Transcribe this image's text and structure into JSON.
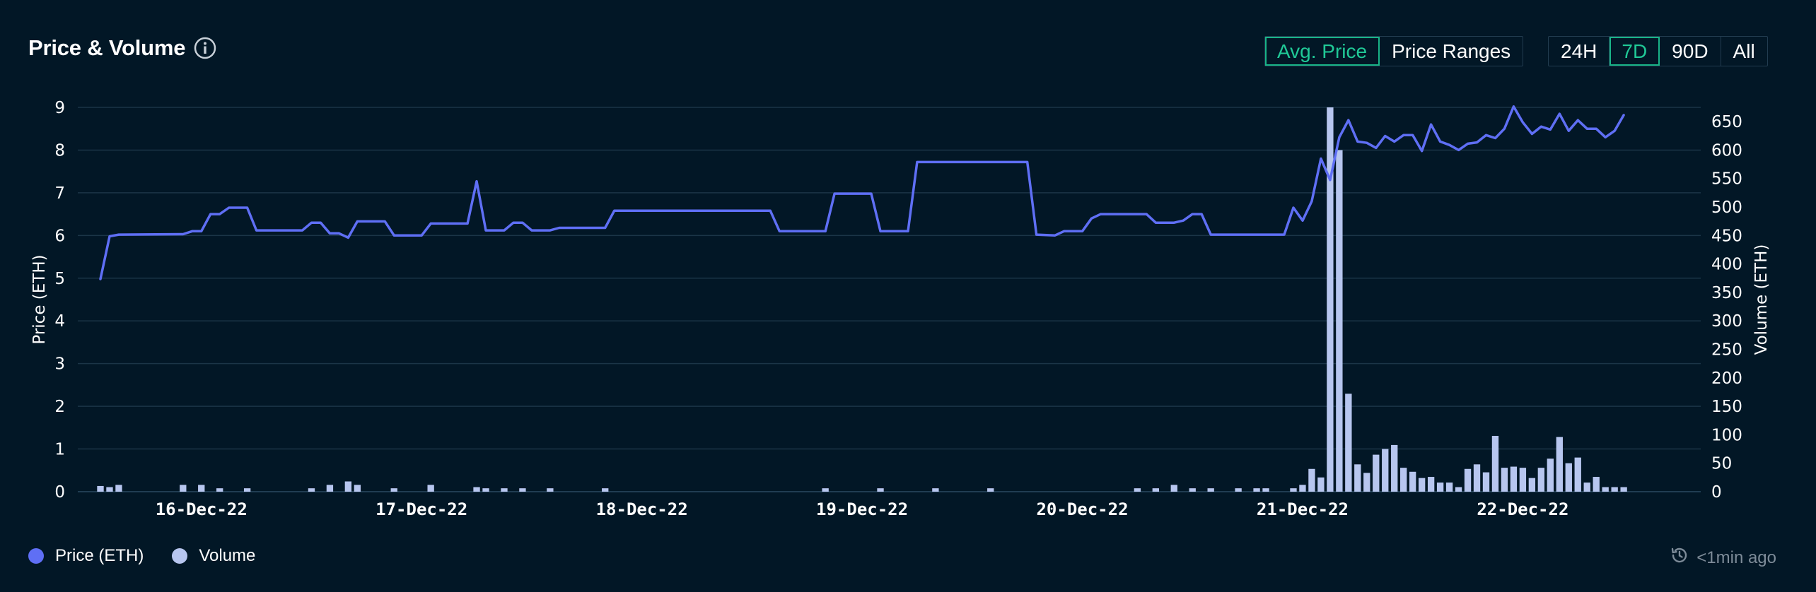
{
  "header": {
    "title": "Price & Volume",
    "info_icon": "info-icon"
  },
  "mode_tabs": [
    {
      "label": "Avg. Price",
      "active": true
    },
    {
      "label": "Price Ranges",
      "active": false
    }
  ],
  "range_tabs": [
    {
      "label": "24H",
      "active": false
    },
    {
      "label": "7D",
      "active": true
    },
    {
      "label": "90D",
      "active": false
    },
    {
      "label": "All",
      "active": false
    }
  ],
  "legend": {
    "price_label": "Price (ETH)",
    "volume_label": "Volume"
  },
  "footer": {
    "updated_text": "<1min ago",
    "updated_icon": "history-icon"
  },
  "colors": {
    "background": "#021726",
    "price_line": "#5f6ff5",
    "volume_bar": "#b7c6ef",
    "active_tab": "#20c997",
    "grid": "#1b3547"
  },
  "chart_data": {
    "type": "line+bar",
    "title": "Price & Volume",
    "left_axis": {
      "label": "Price (ETH)",
      "range": [
        0,
        9
      ],
      "ticks": [
        0,
        1,
        2,
        3,
        4,
        5,
        6,
        7,
        8,
        9
      ]
    },
    "right_axis": {
      "label": "Volume (ETH)",
      "range": [
        0,
        675
      ],
      "ticks": [
        0,
        50,
        100,
        150,
        200,
        250,
        300,
        350,
        400,
        450,
        500,
        550,
        600,
        650
      ]
    },
    "x_range": [
      "2022-12-15T13:00",
      "2022-12-22T17:00"
    ],
    "x_tick_labels": [
      "16-Dec-22",
      "17-Dec-22",
      "18-Dec-22",
      "19-Dec-22",
      "20-Dec-22",
      "21-Dec-22",
      "22-Dec-22"
    ],
    "x_tick_dates": [
      "2022-12-16T00:00",
      "2022-12-17T00:00",
      "2022-12-18T00:00",
      "2022-12-19T00:00",
      "2022-12-20T00:00",
      "2022-12-21T00:00",
      "2022-12-22T00:00"
    ],
    "grid": true,
    "legend_position": "bottom-left",
    "series": [
      {
        "name": "Price (ETH)",
        "type": "line",
        "axis": "left",
        "points": [
          [
            "2022-12-15T13:00",
            4.98
          ],
          [
            "2022-12-15T14:00",
            5.98
          ],
          [
            "2022-12-15T15:00",
            6.02
          ],
          [
            "2022-12-15T22:00",
            6.03
          ],
          [
            "2022-12-15T23:00",
            6.1
          ],
          [
            "2022-12-16T00:00",
            6.1
          ],
          [
            "2022-12-16T01:00",
            6.5
          ],
          [
            "2022-12-16T02:00",
            6.5
          ],
          [
            "2022-12-16T03:00",
            6.65
          ],
          [
            "2022-12-16T05:00",
            6.65
          ],
          [
            "2022-12-16T06:00",
            6.12
          ],
          [
            "2022-12-16T11:00",
            6.12
          ],
          [
            "2022-12-16T12:00",
            6.3
          ],
          [
            "2022-12-16T13:00",
            6.3
          ],
          [
            "2022-12-16T14:00",
            6.05
          ],
          [
            "2022-12-16T15:00",
            6.05
          ],
          [
            "2022-12-16T16:00",
            5.95
          ],
          [
            "2022-12-16T17:00",
            6.33
          ],
          [
            "2022-12-16T20:00",
            6.33
          ],
          [
            "2022-12-16T21:00",
            6.0
          ],
          [
            "2022-12-17T00:00",
            6.0
          ],
          [
            "2022-12-17T01:00",
            6.28
          ],
          [
            "2022-12-17T05:00",
            6.28
          ],
          [
            "2022-12-17T06:00",
            7.27
          ],
          [
            "2022-12-17T07:00",
            6.12
          ],
          [
            "2022-12-17T09:00",
            6.12
          ],
          [
            "2022-12-17T10:00",
            6.3
          ],
          [
            "2022-12-17T11:00",
            6.3
          ],
          [
            "2022-12-17T12:00",
            6.12
          ],
          [
            "2022-12-17T14:00",
            6.12
          ],
          [
            "2022-12-17T15:00",
            6.18
          ],
          [
            "2022-12-17T20:00",
            6.18
          ],
          [
            "2022-12-17T21:00",
            6.58
          ],
          [
            "2022-12-18T14:00",
            6.58
          ],
          [
            "2022-12-18T15:00",
            6.1
          ],
          [
            "2022-12-18T20:00",
            6.1
          ],
          [
            "2022-12-18T21:00",
            6.98
          ],
          [
            "2022-12-19T01:00",
            6.98
          ],
          [
            "2022-12-19T02:00",
            6.1
          ],
          [
            "2022-12-19T05:00",
            6.1
          ],
          [
            "2022-12-19T06:00",
            7.72
          ],
          [
            "2022-12-19T18:00",
            7.72
          ],
          [
            "2022-12-19T19:00",
            6.02
          ],
          [
            "2022-12-19T21:00",
            6.0
          ],
          [
            "2022-12-19T22:00",
            6.1
          ],
          [
            "2022-12-20T00:00",
            6.1
          ],
          [
            "2022-12-20T01:00",
            6.4
          ],
          [
            "2022-12-20T02:00",
            6.5
          ],
          [
            "2022-12-20T07:00",
            6.5
          ],
          [
            "2022-12-20T08:00",
            6.3
          ],
          [
            "2022-12-20T10:00",
            6.3
          ],
          [
            "2022-12-20T11:00",
            6.35
          ],
          [
            "2022-12-20T12:00",
            6.5
          ],
          [
            "2022-12-20T13:00",
            6.5
          ],
          [
            "2022-12-20T14:00",
            6.02
          ],
          [
            "2022-12-20T22:00",
            6.02
          ],
          [
            "2022-12-20T23:00",
            6.65
          ],
          [
            "2022-12-21T00:00",
            6.35
          ],
          [
            "2022-12-21T01:00",
            6.8
          ],
          [
            "2022-12-21T02:00",
            7.8
          ],
          [
            "2022-12-21T03:00",
            7.3
          ],
          [
            "2022-12-21T04:00",
            8.3
          ],
          [
            "2022-12-21T05:00",
            8.7
          ],
          [
            "2022-12-21T06:00",
            8.2
          ],
          [
            "2022-12-21T07:00",
            8.17
          ],
          [
            "2022-12-21T08:00",
            8.05
          ],
          [
            "2022-12-21T09:00",
            8.33
          ],
          [
            "2022-12-21T10:00",
            8.2
          ],
          [
            "2022-12-21T11:00",
            8.35
          ],
          [
            "2022-12-21T12:00",
            8.35
          ],
          [
            "2022-12-21T13:00",
            7.98
          ],
          [
            "2022-12-21T14:00",
            8.6
          ],
          [
            "2022-12-21T15:00",
            8.2
          ],
          [
            "2022-12-21T16:00",
            8.12
          ],
          [
            "2022-12-21T17:00",
            8.0
          ],
          [
            "2022-12-21T18:00",
            8.15
          ],
          [
            "2022-12-21T19:00",
            8.18
          ],
          [
            "2022-12-21T20:00",
            8.35
          ],
          [
            "2022-12-21T21:00",
            8.28
          ],
          [
            "2022-12-21T22:00",
            8.5
          ],
          [
            "2022-12-21T23:00",
            9.02
          ],
          [
            "2022-12-22T00:00",
            8.65
          ],
          [
            "2022-12-22T01:00",
            8.38
          ],
          [
            "2022-12-22T02:00",
            8.55
          ],
          [
            "2022-12-22T03:00",
            8.48
          ],
          [
            "2022-12-22T04:00",
            8.85
          ],
          [
            "2022-12-22T05:00",
            8.45
          ],
          [
            "2022-12-22T06:00",
            8.7
          ],
          [
            "2022-12-22T07:00",
            8.5
          ],
          [
            "2022-12-22T08:00",
            8.5
          ],
          [
            "2022-12-22T09:00",
            8.3
          ],
          [
            "2022-12-22T10:00",
            8.45
          ],
          [
            "2022-12-22T11:00",
            8.82
          ]
        ]
      },
      {
        "name": "Volume",
        "type": "bar",
        "axis": "right",
        "points": [
          [
            "2022-12-15T13:00",
            10
          ],
          [
            "2022-12-15T14:00",
            8
          ],
          [
            "2022-12-15T15:00",
            12
          ],
          [
            "2022-12-15T22:00",
            12
          ],
          [
            "2022-12-16T00:00",
            12
          ],
          [
            "2022-12-16T02:00",
            6
          ],
          [
            "2022-12-16T05:00",
            6
          ],
          [
            "2022-12-16T12:00",
            6
          ],
          [
            "2022-12-16T14:00",
            12
          ],
          [
            "2022-12-16T16:00",
            18
          ],
          [
            "2022-12-16T17:00",
            12
          ],
          [
            "2022-12-16T21:00",
            6
          ],
          [
            "2022-12-17T01:00",
            12
          ],
          [
            "2022-12-17T06:00",
            8
          ],
          [
            "2022-12-17T07:00",
            6
          ],
          [
            "2022-12-17T09:00",
            6
          ],
          [
            "2022-12-17T11:00",
            6
          ],
          [
            "2022-12-17T14:00",
            6
          ],
          [
            "2022-12-17T20:00",
            6
          ],
          [
            "2022-12-18T20:00",
            6
          ],
          [
            "2022-12-19T02:00",
            6
          ],
          [
            "2022-12-19T08:00",
            6
          ],
          [
            "2022-12-19T14:00",
            6
          ],
          [
            "2022-12-20T06:00",
            6
          ],
          [
            "2022-12-20T08:00",
            6
          ],
          [
            "2022-12-20T10:00",
            12
          ],
          [
            "2022-12-20T12:00",
            6
          ],
          [
            "2022-12-20T14:00",
            6
          ],
          [
            "2022-12-20T17:00",
            6
          ],
          [
            "2022-12-20T19:00",
            6
          ],
          [
            "2022-12-20T20:00",
            6
          ],
          [
            "2022-12-20T23:00",
            6
          ],
          [
            "2022-12-21T00:00",
            12
          ],
          [
            "2022-12-21T01:00",
            40
          ],
          [
            "2022-12-21T02:00",
            25
          ],
          [
            "2022-12-21T03:00",
            675
          ],
          [
            "2022-12-21T04:00",
            600
          ],
          [
            "2022-12-21T05:00",
            172
          ],
          [
            "2022-12-21T06:00",
            48
          ],
          [
            "2022-12-21T07:00",
            33
          ],
          [
            "2022-12-21T08:00",
            65
          ],
          [
            "2022-12-21T09:00",
            75
          ],
          [
            "2022-12-21T10:00",
            82
          ],
          [
            "2022-12-21T11:00",
            42
          ],
          [
            "2022-12-21T12:00",
            35
          ],
          [
            "2022-12-21T13:00",
            24
          ],
          [
            "2022-12-21T14:00",
            26
          ],
          [
            "2022-12-21T15:00",
            16
          ],
          [
            "2022-12-21T16:00",
            16
          ],
          [
            "2022-12-21T17:00",
            8
          ],
          [
            "2022-12-21T18:00",
            40
          ],
          [
            "2022-12-21T19:00",
            48
          ],
          [
            "2022-12-21T20:00",
            34
          ],
          [
            "2022-12-21T21:00",
            98
          ],
          [
            "2022-12-21T22:00",
            42
          ],
          [
            "2022-12-21T23:00",
            44
          ],
          [
            "2022-12-22T00:00",
            42
          ],
          [
            "2022-12-22T01:00",
            24
          ],
          [
            "2022-12-22T02:00",
            42
          ],
          [
            "2022-12-22T03:00",
            58
          ],
          [
            "2022-12-22T04:00",
            96
          ],
          [
            "2022-12-22T05:00",
            50
          ],
          [
            "2022-12-22T06:00",
            60
          ],
          [
            "2022-12-22T07:00",
            16
          ],
          [
            "2022-12-22T08:00",
            26
          ],
          [
            "2022-12-22T09:00",
            8
          ],
          [
            "2022-12-22T10:00",
            8
          ],
          [
            "2022-12-22T11:00",
            8
          ]
        ]
      }
    ]
  }
}
